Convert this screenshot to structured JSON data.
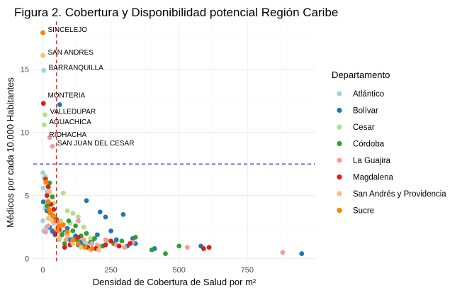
{
  "chart_data": {
    "type": "scatter",
    "title": "Figura 2. Cobertura y Disponibilidad potencial Región Caribe",
    "xlabel": "Densidad de Cobertura de Salud por m²",
    "ylabel": "Médicos por cada 10.000 Habitantes",
    "xlim": [
      -35,
      1000
    ],
    "ylim": [
      -0.3,
      18.8
    ],
    "x_ticks": [
      0,
      250,
      500,
      750
    ],
    "x_tick_labels": [
      "0",
      "250",
      "500",
      "750"
    ],
    "y_ticks": [
      0,
      5,
      10,
      15
    ],
    "y_tick_labels": [
      "0",
      "5",
      "10",
      "15"
    ],
    "grid": true,
    "legend_position": "right",
    "legend_title": "Departamento",
    "reference_lines": [
      {
        "orientation": "horizontal",
        "value": 7.5,
        "color": "#0000cc"
      },
      {
        "orientation": "vertical",
        "value": 50,
        "color": "#cc0000"
      }
    ],
    "series": [
      {
        "name": "Atlántico",
        "color": "#a6cee3",
        "points": [
          [
            3,
            14.9
          ],
          [
            0,
            6.8
          ],
          [
            5,
            6.4
          ],
          [
            10,
            6.0
          ],
          [
            2,
            5.6
          ],
          [
            15,
            5.3
          ],
          [
            20,
            4.6
          ],
          [
            8,
            4.0
          ],
          [
            25,
            3.6
          ],
          [
            30,
            3.3
          ],
          [
            0,
            3.0
          ],
          [
            40,
            2.8
          ],
          [
            12,
            2.5
          ],
          [
            55,
            2.4
          ],
          [
            3,
            2.2
          ],
          [
            70,
            2.0
          ],
          [
            90,
            1.8
          ],
          [
            60,
            1.5
          ],
          [
            110,
            1.6
          ],
          [
            140,
            1.4
          ],
          [
            160,
            1.2
          ],
          [
            200,
            1.1
          ],
          [
            75,
            2.6
          ],
          [
            35,
            2.1
          ],
          [
            18,
            2.4
          ]
        ]
      },
      {
        "name": "Bolívar",
        "color": "#1f78b4",
        "points": [
          [
            62,
            12.2
          ],
          [
            2,
            4.5
          ],
          [
            15,
            3.8
          ],
          [
            25,
            2.5
          ],
          [
            35,
            2.2
          ],
          [
            45,
            1.9
          ],
          [
            60,
            1.6
          ],
          [
            80,
            2.1
          ],
          [
            100,
            1.5
          ],
          [
            120,
            1.8
          ],
          [
            140,
            1.3
          ],
          [
            160,
            4.6
          ],
          [
            180,
            1.4
          ],
          [
            200,
            1.9
          ],
          [
            210,
            3.7
          ],
          [
            230,
            3.3
          ],
          [
            250,
            2.2
          ],
          [
            270,
            1.5
          ],
          [
            295,
            3.5
          ],
          [
            310,
            1.0
          ],
          [
            330,
            1.6
          ],
          [
            340,
            1.2
          ],
          [
            410,
            0.8
          ],
          [
            580,
            1.0
          ],
          [
            950,
            0.4
          ],
          [
            90,
            2.4
          ],
          [
            130,
            1.1
          ],
          [
            55,
            3.0
          ]
        ]
      },
      {
        "name": "Cesar",
        "color": "#b2df8a",
        "points": [
          [
            8,
            11.4
          ],
          [
            5,
            10.6
          ],
          [
            10,
            6.5
          ],
          [
            20,
            4.2
          ],
          [
            35,
            3.5
          ],
          [
            45,
            3.2
          ],
          [
            60,
            2.9
          ],
          [
            75,
            5.2
          ],
          [
            90,
            3.8
          ],
          [
            110,
            3.6
          ],
          [
            130,
            3.3
          ],
          [
            150,
            2.5
          ],
          [
            175,
            1.6
          ],
          [
            210,
            1.0
          ],
          [
            240,
            1.4
          ],
          [
            40,
            4.4
          ],
          [
            65,
            3.0
          ],
          [
            85,
            2.0
          ],
          [
            100,
            2.8
          ]
        ]
      },
      {
        "name": "Córdoba",
        "color": "#33a02c",
        "points": [
          [
            25,
            6.0
          ],
          [
            35,
            4.9
          ],
          [
            45,
            3.2
          ],
          [
            60,
            2.7
          ],
          [
            80,
            1.2
          ],
          [
            95,
            3.0
          ],
          [
            110,
            2.2
          ],
          [
            125,
            1.5
          ],
          [
            140,
            1.8
          ],
          [
            160,
            2.0
          ],
          [
            175,
            1.3
          ],
          [
            190,
            1.6
          ],
          [
            220,
            1.0
          ],
          [
            260,
            1.2
          ],
          [
            290,
            1.4
          ],
          [
            340,
            1.7
          ],
          [
            400,
            0.7
          ],
          [
            450,
            0.4
          ],
          [
            500,
            1.0
          ],
          [
            15,
            4.2
          ],
          [
            70,
            1.9
          ],
          [
            120,
            2.6
          ],
          [
            150,
            1.0
          ]
        ]
      },
      {
        "name": "La Guajira",
        "color": "#fb9a99",
        "points": [
          [
            25,
            9.6
          ],
          [
            35,
            8.9
          ],
          [
            10,
            2.1
          ],
          [
            20,
            2.6
          ],
          [
            40,
            3.4
          ],
          [
            60,
            2.8
          ],
          [
            85,
            1.5
          ],
          [
            110,
            1.4
          ],
          [
            130,
            3.0
          ],
          [
            150,
            1.5
          ],
          [
            180,
            1.2
          ],
          [
            200,
            1.0
          ],
          [
            230,
            1.5
          ],
          [
            270,
            1.1
          ],
          [
            300,
            0.9
          ],
          [
            330,
            1.3
          ],
          [
            530,
            0.9
          ],
          [
            880,
            0.5
          ]
        ]
      },
      {
        "name": "Magdalena",
        "color": "#e31a1c",
        "points": [
          [
            2,
            12.3
          ],
          [
            10,
            6.3
          ],
          [
            20,
            5.7
          ],
          [
            30,
            4.3
          ],
          [
            40,
            3.9
          ],
          [
            50,
            3.1
          ],
          [
            60,
            2.3
          ],
          [
            80,
            0.9
          ],
          [
            100,
            1.1
          ],
          [
            130,
            1.7
          ],
          [
            165,
            0.9
          ],
          [
            195,
            0.8
          ],
          [
            230,
            1.1
          ],
          [
            250,
            1.4
          ],
          [
            280,
            1.0
          ],
          [
            320,
            1.2
          ],
          [
            590,
            0.8
          ],
          [
            610,
            0.9
          ],
          [
            15,
            5.0
          ],
          [
            45,
            2.0
          ]
        ]
      },
      {
        "name": "San Andrés y Providencia",
        "color": "#fdbf6f",
        "points": [
          [
            0,
            16.1
          ],
          [
            10,
            6.0
          ],
          [
            25,
            5.3
          ],
          [
            35,
            3.0
          ],
          [
            50,
            2.4
          ],
          [
            70,
            2.6
          ],
          [
            90,
            1.8
          ],
          [
            110,
            1.2
          ],
          [
            140,
            0.9
          ],
          [
            175,
            0.7
          ],
          [
            205,
            0.7
          ],
          [
            20,
            3.2
          ],
          [
            60,
            1.6
          ]
        ]
      },
      {
        "name": "Sucre",
        "color": "#ff7f00",
        "points": [
          [
            0,
            17.9
          ],
          [
            12,
            6.1
          ],
          [
            20,
            4.5
          ],
          [
            28,
            3.6
          ],
          [
            38,
            3.4
          ],
          [
            48,
            3.0
          ],
          [
            60,
            2.6
          ],
          [
            75,
            2.7
          ],
          [
            90,
            2.1
          ],
          [
            110,
            1.5
          ],
          [
            130,
            1.2
          ],
          [
            155,
            0.9
          ],
          [
            180,
            0.8
          ],
          [
            22,
            3.9
          ],
          [
            55,
            2.2
          ]
        ]
      }
    ],
    "annotations": [
      {
        "text": "SINCELEJO",
        "x": 0,
        "y": 17.9
      },
      {
        "text": "SAN ANDRES",
        "x": 0,
        "y": 16.1
      },
      {
        "text": "BARRANQUILLA",
        "x": 3,
        "y": 14.9
      },
      {
        "text": "MONTERIA",
        "x": 0,
        "y": 12.7
      },
      {
        "text": "VALLEDUPAR",
        "x": 8,
        "y": 11.4
      },
      {
        "text": "AGUACHICA",
        "x": 5,
        "y": 10.6
      },
      {
        "text": "RIOHACHA",
        "x": 5,
        "y": 9.6
      },
      {
        "text": "SAN JUAN DEL CESAR",
        "x": 35,
        "y": 8.9
      }
    ]
  }
}
